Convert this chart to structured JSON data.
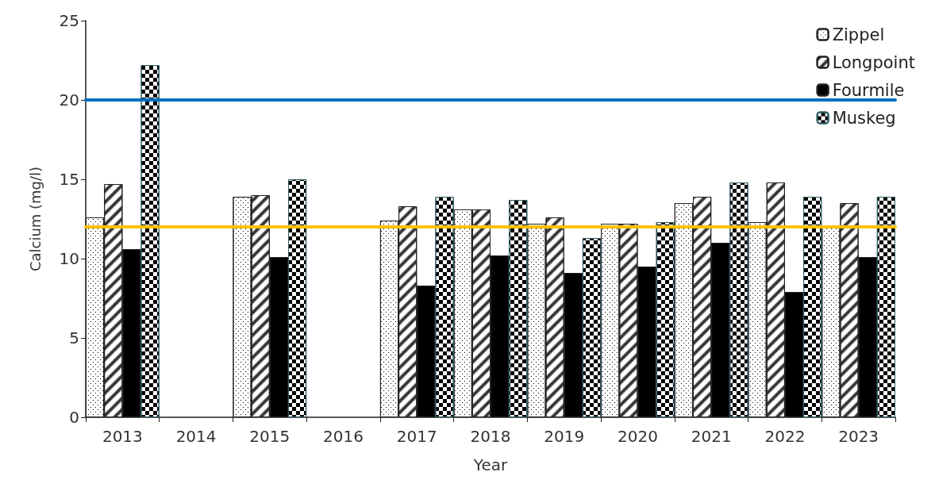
{
  "chart_data": {
    "type": "bar",
    "xlabel": "Year",
    "ylabel": "Calcium (mg/l)",
    "categories": [
      "2013",
      "2014",
      "2015",
      "2016",
      "2017",
      "2018",
      "2019",
      "2020",
      "2021",
      "2022",
      "2023"
    ],
    "series": [
      {
        "name": "Zippel",
        "color": "#ffffff",
        "values": [
          12.6,
          null,
          13.9,
          null,
          12.4,
          13.1,
          12.2,
          12.2,
          13.5,
          12.3,
          12.0
        ]
      },
      {
        "name": "Longpoint",
        "color": "#ffffff",
        "values": [
          14.7,
          null,
          14.0,
          null,
          13.3,
          13.1,
          12.6,
          12.2,
          13.9,
          14.8,
          13.5
        ]
      },
      {
        "name": "Fourmile",
        "color": "#000000",
        "values": [
          10.6,
          null,
          10.1,
          null,
          8.3,
          10.2,
          9.1,
          9.5,
          11.0,
          7.9,
          10.1
        ]
      },
      {
        "name": "Muskeg",
        "color": "#ffffff",
        "values": [
          22.2,
          null,
          15.0,
          null,
          13.9,
          13.7,
          11.3,
          12.3,
          14.8,
          13.9,
          13.9
        ]
      }
    ],
    "ref_lines": [
      {
        "axis": "y",
        "value": 20,
        "color": "#0070c0"
      },
      {
        "axis": "y",
        "value": 12,
        "color": "#ffc000"
      }
    ],
    "ylim": [
      0,
      25
    ],
    "yticks": [
      0,
      5,
      10,
      15,
      20,
      25
    ],
    "grid": false,
    "legend": "top right"
  }
}
